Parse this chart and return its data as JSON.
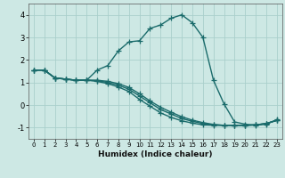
{
  "xlabel": "Humidex (Indice chaleur)",
  "ylabel": "",
  "xlim": [
    -0.5,
    23.5
  ],
  "ylim": [
    -1.5,
    4.5
  ],
  "yticks": [
    -1,
    0,
    1,
    2,
    3,
    4
  ],
  "xticks": [
    0,
    1,
    2,
    3,
    4,
    5,
    6,
    7,
    8,
    9,
    10,
    11,
    12,
    13,
    14,
    15,
    16,
    17,
    18,
    19,
    20,
    21,
    22,
    23
  ],
  "bg_color": "#cde8e4",
  "grid_color": "#aacfcc",
  "line_color": "#1a6b6b",
  "marker": "+",
  "line_width": 1.0,
  "marker_size": 4,
  "curves": [
    {
      "x": [
        0,
        1,
        2,
        3,
        4,
        5,
        6,
        7,
        8,
        9,
        10,
        11,
        12,
        13,
        14,
        15,
        16,
        17,
        18,
        19,
        20,
        21,
        22,
        23
      ],
      "y": [
        1.55,
        1.55,
        1.2,
        1.15,
        1.1,
        1.1,
        1.55,
        1.75,
        2.4,
        2.8,
        2.85,
        3.4,
        3.55,
        3.85,
        4.0,
        3.65,
        3.0,
        1.1,
        0.05,
        -0.75,
        -0.85,
        -0.9,
        -0.85,
        -0.65
      ]
    },
    {
      "x": [
        0,
        1,
        2,
        3,
        4,
        5,
        6,
        7,
        8,
        9,
        10,
        11,
        12,
        13,
        14,
        15,
        16,
        17,
        18,
        19,
        20,
        21,
        22,
        23
      ],
      "y": [
        1.55,
        1.55,
        1.2,
        1.15,
        1.1,
        1.1,
        1.05,
        0.95,
        0.8,
        0.6,
        0.25,
        -0.05,
        -0.35,
        -0.55,
        -0.7,
        -0.8,
        -0.88,
        -0.9,
        -0.9,
        -0.9,
        -0.9,
        -0.88,
        -0.82,
        -0.68
      ]
    },
    {
      "x": [
        0,
        1,
        2,
        3,
        4,
        5,
        6,
        7,
        8,
        9,
        10,
        11,
        12,
        13,
        14,
        15,
        16,
        17,
        18,
        19,
        20,
        21,
        22,
        23
      ],
      "y": [
        1.55,
        1.55,
        1.2,
        1.15,
        1.1,
        1.1,
        1.08,
        1.0,
        0.88,
        0.7,
        0.4,
        0.1,
        -0.2,
        -0.4,
        -0.6,
        -0.72,
        -0.82,
        -0.88,
        -0.9,
        -0.9,
        -0.9,
        -0.88,
        -0.82,
        -0.68
      ]
    },
    {
      "x": [
        0,
        1,
        2,
        3,
        4,
        5,
        6,
        7,
        8,
        9,
        10,
        11,
        12,
        13,
        14,
        15,
        16,
        17,
        18,
        19,
        20,
        21,
        22,
        23
      ],
      "y": [
        1.55,
        1.55,
        1.2,
        1.15,
        1.1,
        1.1,
        1.1,
        1.05,
        0.95,
        0.78,
        0.5,
        0.18,
        -0.1,
        -0.32,
        -0.52,
        -0.67,
        -0.78,
        -0.86,
        -0.9,
        -0.9,
        -0.9,
        -0.88,
        -0.82,
        -0.68
      ]
    }
  ]
}
